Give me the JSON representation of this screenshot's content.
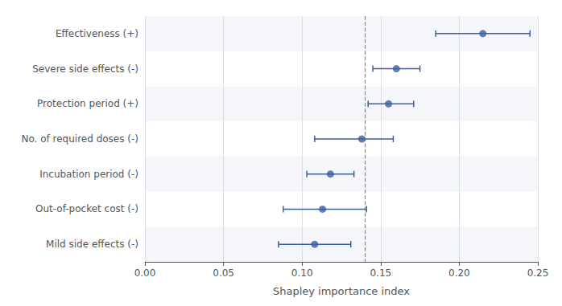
{
  "chart_data": {
    "type": "scatter",
    "orientation": "horizontal",
    "xlabel": "Shapley importance index",
    "categories": [
      "Effectiveness (+)",
      "Severe side effects (-)",
      "Protection period (+)",
      "No. of required doses (-)",
      "Incubation period (-)",
      "Out-of-pocket cost (-)",
      "Mild side effects (-)"
    ],
    "values": [
      0.215,
      0.16,
      0.155,
      0.138,
      0.118,
      0.113,
      0.108
    ],
    "error_minus": [
      0.03,
      0.015,
      0.013,
      0.03,
      0.015,
      0.025,
      0.023
    ],
    "error_plus": [
      0.03,
      0.015,
      0.016,
      0.02,
      0.015,
      0.028,
      0.023
    ],
    "reference_x": 0.1429,
    "color": "#3a5f9e",
    "marker": "circle",
    "xlim": [
      0.0,
      0.25
    ],
    "xticks": [
      {
        "value": 0,
        "label": "0.00"
      },
      0.05,
      {
        "value": 0.1,
        "label": "0.10"
      },
      0.15,
      {
        "value": 0.2,
        "label": "0.20"
      },
      0.25
    ],
    "grid": true
  }
}
